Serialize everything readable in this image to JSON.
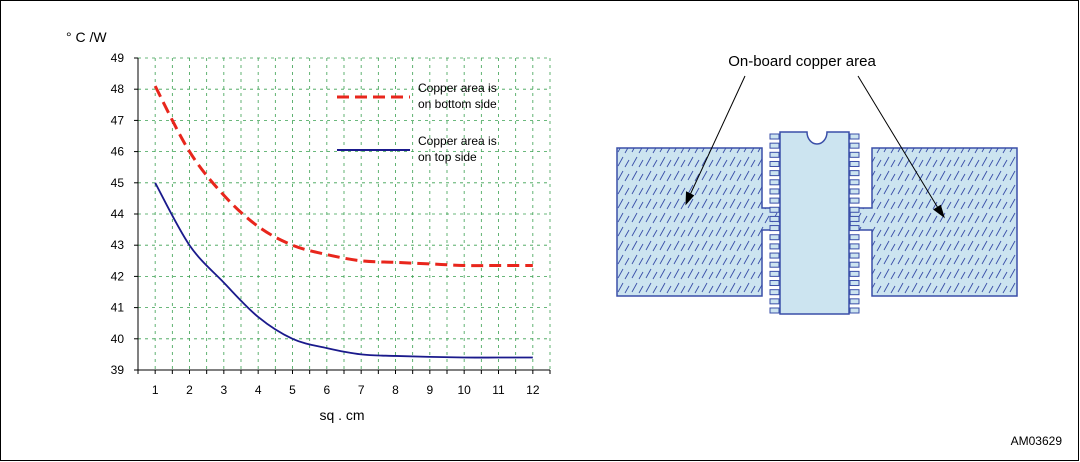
{
  "chart_data": {
    "type": "line",
    "ylabel": "° C /W",
    "xlabel": "sq . cm",
    "x": [
      1,
      2,
      3,
      4,
      5,
      6,
      7,
      8,
      9,
      10,
      11,
      12
    ],
    "xlim": [
      0.5,
      12.5
    ],
    "ylim": [
      39,
      49
    ],
    "yticks": [
      39,
      40,
      41,
      42,
      43,
      44,
      45,
      46,
      47,
      48,
      49
    ],
    "xticks": [
      1,
      2,
      3,
      4,
      5,
      6,
      7,
      8,
      9,
      10,
      11,
      12
    ],
    "grid": true,
    "legend_position": "top-right",
    "series": [
      {
        "name": "Copper area is on bottom side",
        "name_lines": [
          "Copper area is",
          "on bottom side"
        ],
        "color": "#e8261c",
        "style": "dashed",
        "values": [
          48.1,
          46.0,
          44.6,
          43.6,
          43.0,
          42.7,
          42.5,
          42.45,
          42.4,
          42.35,
          42.35,
          42.35
        ]
      },
      {
        "name": "Copper area is on top side",
        "name_lines": [
          "Copper area is",
          "on top side"
        ],
        "color": "#1a1a8c",
        "style": "solid",
        "values": [
          45.0,
          43.0,
          41.8,
          40.7,
          40.0,
          39.7,
          39.5,
          39.45,
          39.42,
          39.4,
          39.4,
          39.4
        ]
      }
    ]
  },
  "diagram": {
    "callout_label": "On-board copper area",
    "fill_color": "#cce4f0",
    "hatch_color": "#3a4fa8"
  },
  "figure_id": "AM03629"
}
